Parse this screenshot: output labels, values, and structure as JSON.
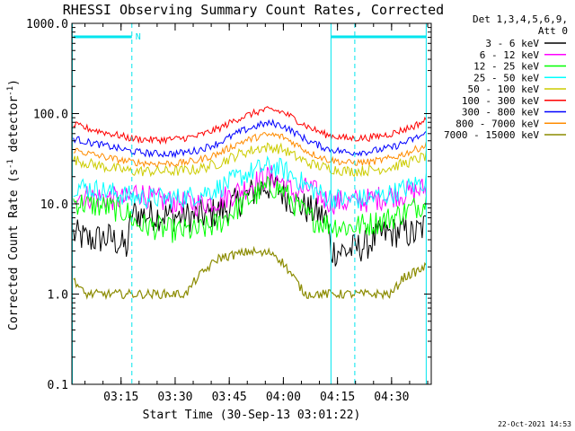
{
  "chart_data": {
    "type": "line",
    "title": "RHESSI Observing Summary Count Rates, Corrected",
    "xlabel": "Start Time (30-Sep-13 03:01:22)",
    "ylabel_main": "Corrected Count Rate (s",
    "ylabel_sup1": "-1",
    "ylabel_mid": " detector",
    "ylabel_sup2": "-1",
    "ylabel_end": ")",
    "yscale": "log",
    "ylim": [
      0.1,
      1000
    ],
    "xlim": [
      3.0228,
      4.6833
    ],
    "y_tick_labels": [
      "0.1",
      "1.0",
      "10.0",
      "100.0",
      "1000.0"
    ],
    "x_ticks": [
      {
        "t": 3.25,
        "label": "03:15"
      },
      {
        "t": 3.5,
        "label": "03:30"
      },
      {
        "t": 3.75,
        "label": "03:45"
      },
      {
        "t": 4.0,
        "label": "04:00"
      },
      {
        "t": 4.25,
        "label": "04:15"
      },
      {
        "t": 4.5,
        "label": "04:30"
      }
    ],
    "legend_header": [
      "Det 1,3,4,5,6,9,",
      "Att 0"
    ],
    "legend_position": "right",
    "flag_label": "N",
    "night_flag_color": "#00e5ee",
    "night_markers": [
      3.3,
      4.33
    ],
    "day_markers": [
      3.025,
      4.22,
      4.66
    ],
    "flag_segments": [
      [
        3.03,
        3.3
      ],
      [
        4.22,
        4.66
      ]
    ],
    "series": [
      {
        "name": "3 - 6 keV",
        "color": "#000000",
        "points": [
          [
            3.03,
            4.6
          ],
          [
            3.1,
            4.0
          ],
          [
            3.2,
            4.2
          ],
          [
            3.28,
            3.2
          ],
          [
            3.3,
            8.0
          ],
          [
            3.35,
            7.5
          ],
          [
            3.45,
            7.5
          ],
          [
            3.55,
            7.2
          ],
          [
            3.65,
            7.5
          ],
          [
            3.75,
            9.0
          ],
          [
            3.85,
            13.0
          ],
          [
            3.92,
            16.0
          ],
          [
            3.97,
            15.0
          ],
          [
            4.05,
            10.5
          ],
          [
            4.12,
            8.5
          ],
          [
            4.2,
            7.0
          ],
          [
            4.22,
            3.0
          ],
          [
            4.3,
            3.0
          ],
          [
            4.38,
            3.5
          ],
          [
            4.45,
            4.5
          ],
          [
            4.55,
            5.0
          ],
          [
            4.6,
            4.5
          ],
          [
            4.66,
            5.8
          ]
        ]
      },
      {
        "name": "6 - 12 keV",
        "color": "#ff00ff",
        "points": [
          [
            3.03,
            13.0
          ],
          [
            3.1,
            12.0
          ],
          [
            3.2,
            11.5
          ],
          [
            3.28,
            11.0
          ],
          [
            3.32,
            14.0
          ],
          [
            3.4,
            11.0
          ],
          [
            3.5,
            10.5
          ],
          [
            3.6,
            10.0
          ],
          [
            3.7,
            11.0
          ],
          [
            3.8,
            14.0
          ],
          [
            3.9,
            19.0
          ],
          [
            3.95,
            20.0
          ],
          [
            4.0,
            17.0
          ],
          [
            4.05,
            13.0
          ],
          [
            4.12,
            15.0
          ],
          [
            4.18,
            11.5
          ],
          [
            4.22,
            10.5
          ],
          [
            4.3,
            10.5
          ],
          [
            4.4,
            11.0
          ],
          [
            4.5,
            12.5
          ],
          [
            4.6,
            13.5
          ],
          [
            4.66,
            15.0
          ]
        ]
      },
      {
        "name": "12 - 25 keV",
        "color": "#00ff00",
        "points": [
          [
            3.03,
            10.5
          ],
          [
            3.1,
            9.8
          ],
          [
            3.2,
            9.0
          ],
          [
            3.28,
            8.0
          ],
          [
            3.32,
            6.0
          ],
          [
            3.4,
            5.5
          ],
          [
            3.5,
            5.0
          ],
          [
            3.6,
            5.0
          ],
          [
            3.7,
            6.0
          ],
          [
            3.8,
            9.5
          ],
          [
            3.9,
            14.0
          ],
          [
            3.95,
            15.5
          ],
          [
            4.0,
            14.0
          ],
          [
            4.05,
            10.0
          ],
          [
            4.12,
            7.0
          ],
          [
            4.2,
            6.0
          ],
          [
            4.3,
            5.5
          ],
          [
            4.4,
            6.0
          ],
          [
            4.5,
            7.0
          ],
          [
            4.6,
            9.0
          ],
          [
            4.66,
            10.5
          ]
        ]
      },
      {
        "name": "25 - 50 keV",
        "color": "#00ffff",
        "points": [
          [
            3.03,
            16.0
          ],
          [
            3.1,
            15.0
          ],
          [
            3.2,
            13.5
          ],
          [
            3.3,
            12.0
          ],
          [
            3.4,
            11.5
          ],
          [
            3.5,
            11.5
          ],
          [
            3.6,
            12.5
          ],
          [
            3.7,
            15.0
          ],
          [
            3.8,
            20.0
          ],
          [
            3.9,
            25.0
          ],
          [
            3.95,
            26.0
          ],
          [
            4.0,
            24.0
          ],
          [
            4.05,
            20.0
          ],
          [
            4.12,
            15.0
          ],
          [
            4.2,
            12.0
          ],
          [
            4.3,
            11.0
          ],
          [
            4.4,
            11.5
          ],
          [
            4.5,
            13.0
          ],
          [
            4.6,
            16.0
          ],
          [
            4.66,
            18.0
          ]
        ]
      },
      {
        "name": "50 - 100 keV",
        "color": "#cccc00",
        "points": [
          [
            3.03,
            31.0
          ],
          [
            3.1,
            28.0
          ],
          [
            3.2,
            25.0
          ],
          [
            3.3,
            23.0
          ],
          [
            3.4,
            23.0
          ],
          [
            3.5,
            23.0
          ],
          [
            3.6,
            24.0
          ],
          [
            3.7,
            28.0
          ],
          [
            3.8,
            36.0
          ],
          [
            3.9,
            42.0
          ],
          [
            3.95,
            42.0
          ],
          [
            4.0,
            40.0
          ],
          [
            4.05,
            34.0
          ],
          [
            4.12,
            28.0
          ],
          [
            4.2,
            25.0
          ],
          [
            4.3,
            23.0
          ],
          [
            4.4,
            23.5
          ],
          [
            4.5,
            25.5
          ],
          [
            4.6,
            30.0
          ],
          [
            4.66,
            34.0
          ]
        ]
      },
      {
        "name": "100 - 300 keV",
        "color": "#ff0000",
        "points": [
          [
            3.03,
            75.0
          ],
          [
            3.1,
            68.0
          ],
          [
            3.2,
            60.0
          ],
          [
            3.3,
            53.0
          ],
          [
            3.4,
            51.0
          ],
          [
            3.5,
            52.0
          ],
          [
            3.6,
            56.0
          ],
          [
            3.7,
            68.0
          ],
          [
            3.8,
            90.0
          ],
          [
            3.9,
            108.0
          ],
          [
            3.95,
            110.0
          ],
          [
            4.0,
            103.0
          ],
          [
            4.05,
            88.0
          ],
          [
            4.12,
            70.0
          ],
          [
            4.2,
            58.0
          ],
          [
            4.3,
            53.0
          ],
          [
            4.4,
            54.0
          ],
          [
            4.5,
            60.0
          ],
          [
            4.6,
            72.0
          ],
          [
            4.66,
            85.0
          ]
        ]
      },
      {
        "name": "300 - 800 keV",
        "color": "#0000ff",
        "points": [
          [
            3.03,
            53.0
          ],
          [
            3.1,
            48.0
          ],
          [
            3.2,
            43.0
          ],
          [
            3.3,
            38.0
          ],
          [
            3.4,
            36.0
          ],
          [
            3.5,
            36.0
          ],
          [
            3.6,
            39.0
          ],
          [
            3.7,
            47.0
          ],
          [
            3.8,
            63.0
          ],
          [
            3.9,
            76.0
          ],
          [
            3.95,
            78.0
          ],
          [
            4.0,
            73.0
          ],
          [
            4.05,
            62.0
          ],
          [
            4.12,
            49.0
          ],
          [
            4.2,
            41.0
          ],
          [
            4.3,
            37.0
          ],
          [
            4.4,
            38.0
          ],
          [
            4.5,
            42.0
          ],
          [
            4.6,
            52.0
          ],
          [
            4.66,
            60.0
          ]
        ]
      },
      {
        "name": "800 - 7000 keV",
        "color": "#ff8c00",
        "points": [
          [
            3.03,
            40.0
          ],
          [
            3.1,
            36.0
          ],
          [
            3.2,
            32.0
          ],
          [
            3.3,
            29.0
          ],
          [
            3.4,
            28.0
          ],
          [
            3.5,
            28.0
          ],
          [
            3.6,
            30.0
          ],
          [
            3.7,
            36.0
          ],
          [
            3.8,
            48.0
          ],
          [
            3.9,
            57.0
          ],
          [
            3.95,
            58.0
          ],
          [
            4.0,
            55.0
          ],
          [
            4.05,
            47.0
          ],
          [
            4.12,
            37.0
          ],
          [
            4.2,
            31.0
          ],
          [
            4.3,
            28.5
          ],
          [
            4.4,
            29.0
          ],
          [
            4.5,
            32.0
          ],
          [
            4.6,
            39.0
          ],
          [
            4.66,
            45.0
          ]
        ]
      },
      {
        "name": "7000 - 15000 keV",
        "color": "#8b8b00",
        "points": [
          [
            3.03,
            1.5
          ],
          [
            3.08,
            1.0
          ],
          [
            3.3,
            1.0
          ],
          [
            3.45,
            1.0
          ],
          [
            3.55,
            1.0
          ],
          [
            3.6,
            1.5
          ],
          [
            3.7,
            2.5
          ],
          [
            3.8,
            2.8
          ],
          [
            3.85,
            3.0
          ],
          [
            3.9,
            2.8
          ],
          [
            3.95,
            2.9
          ],
          [
            4.0,
            2.2
          ],
          [
            4.05,
            1.5
          ],
          [
            4.1,
            1.0
          ],
          [
            4.2,
            1.0
          ],
          [
            4.5,
            1.0
          ],
          [
            4.55,
            1.5
          ],
          [
            4.62,
            1.8
          ],
          [
            4.66,
            2.0
          ]
        ]
      }
    ]
  },
  "footer": {
    "timestamp": "22-Oct-2021 14:53"
  }
}
